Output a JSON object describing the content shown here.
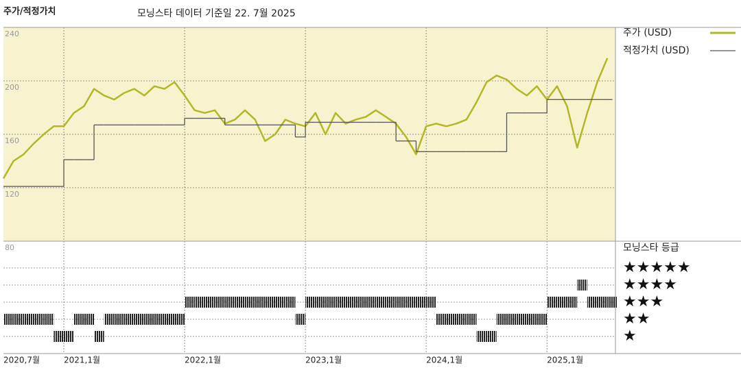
{
  "chart_data": {
    "type": "line",
    "title": "주가/적정가치",
    "subtitle": "모닝스타 데이터 기준일 22. 7월 2025",
    "x": [
      "2020-07",
      "2020-08",
      "2020-09",
      "2020-10",
      "2020-11",
      "2020-12",
      "2021-01",
      "2021-02",
      "2021-03",
      "2021-04",
      "2021-05",
      "2021-06",
      "2021-07",
      "2021-08",
      "2021-09",
      "2021-10",
      "2021-11",
      "2021-12",
      "2022-01",
      "2022-02",
      "2022-03",
      "2022-04",
      "2022-05",
      "2022-06",
      "2022-07",
      "2022-08",
      "2022-09",
      "2022-10",
      "2022-11",
      "2022-12",
      "2023-01",
      "2023-02",
      "2023-03",
      "2023-04",
      "2023-05",
      "2023-06",
      "2023-07",
      "2023-08",
      "2023-09",
      "2023-10",
      "2023-11",
      "2023-12",
      "2024-01",
      "2024-02",
      "2024-03",
      "2024-04",
      "2024-05",
      "2024-06",
      "2024-07",
      "2024-08",
      "2024-09",
      "2024-10",
      "2024-11",
      "2024-12",
      "2025-01",
      "2025-02",
      "2025-03",
      "2025-04",
      "2025-05",
      "2025-06",
      "2025-07"
    ],
    "series": [
      {
        "name": "주가 (USD)",
        "color": "#b3b625",
        "values": [
          127,
          140,
          145,
          153,
          160,
          166,
          166,
          176,
          181,
          194,
          189,
          186,
          191,
          194,
          189,
          196,
          194,
          199,
          189,
          178,
          176,
          178,
          168,
          171,
          178,
          171,
          155,
          160,
          171,
          168,
          166,
          176,
          160,
          176,
          168,
          171,
          173,
          178,
          173,
          168,
          158,
          145,
          166,
          168,
          166,
          168,
          171,
          184,
          199,
          204,
          201,
          194,
          189,
          196,
          186,
          196,
          181,
          150,
          176,
          199,
          217
        ]
      },
      {
        "name": "적정가치 (USD)",
        "color": "#555555",
        "step": true,
        "values": [
          121,
          121,
          121,
          121,
          121,
          121,
          141,
          141,
          141,
          167,
          167,
          167,
          167,
          167,
          167,
          167,
          167,
          167,
          172,
          172,
          172,
          172,
          167,
          167,
          167,
          167,
          167,
          167,
          167,
          158,
          169,
          169,
          169,
          169,
          169,
          169,
          169,
          169,
          169,
          155,
          155,
          147,
          147,
          147,
          147,
          147,
          147,
          147,
          147,
          147,
          176,
          176,
          176,
          176,
          186,
          186,
          186,
          186,
          186,
          186,
          186
        ]
      }
    ],
    "ylim": [
      80,
      240
    ],
    "yticks": [
      80,
      120,
      160,
      200,
      240
    ],
    "xticks": [
      {
        "value": "2020-07",
        "label": "2020,7월"
      },
      {
        "value": "2021-01",
        "label": "2021,1월"
      },
      {
        "value": "2022-01",
        "label": "2022,1월"
      },
      {
        "value": "2023-01",
        "label": "2023,1월"
      },
      {
        "value": "2024-01",
        "label": "2024,1월"
      },
      {
        "value": "2025-01",
        "label": "2025,1월"
      }
    ],
    "grid": true,
    "background": "#f7f3cf",
    "ratings": {
      "title": "모닝스타 등급",
      "levels": [
        {
          "value": 5,
          "label": "★★★★★"
        },
        {
          "value": 4,
          "label": "★★★★"
        },
        {
          "value": 3,
          "label": "★★★"
        },
        {
          "value": 2,
          "label": "★★"
        },
        {
          "value": 1,
          "label": "★"
        }
      ],
      "values": [
        2,
        2,
        2,
        2,
        2,
        1,
        1,
        2,
        2,
        1,
        2,
        2,
        2,
        2,
        2,
        2,
        2,
        2,
        3,
        3,
        3,
        3,
        3,
        3,
        3,
        3,
        3,
        3,
        3,
        2,
        3,
        3,
        3,
        3,
        3,
        3,
        3,
        3,
        3,
        3,
        3,
        3,
        3,
        2,
        2,
        2,
        2,
        1,
        1,
        2,
        2,
        2,
        2,
        2,
        3,
        3,
        3,
        4,
        3,
        3,
        3
      ]
    }
  }
}
